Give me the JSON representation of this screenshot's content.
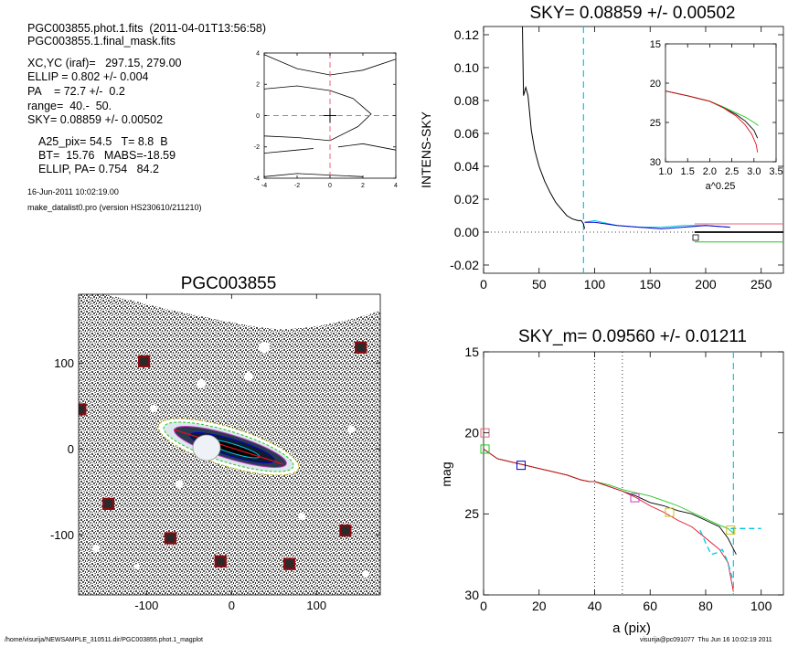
{
  "header": {
    "lines1": [
      "PGC003855.phot.1.fits  (2011-04-01T13:56:58)",
      "PGC003855.1.final_mask.fits"
    ],
    "lines2": [
      "XC,YC (iraf)=   297.15, 279.00",
      "ELLIP = 0.802 +/- 0.004",
      "PA    = 72.7 +/-  0.2",
      "range=  40.-  50.",
      "SKY= 0.08859 +/- 0.00502"
    ],
    "lines3": [
      "A25_pix= 54.5   T= 8.8  B",
      "BT=  15.76   MABS=-18.59",
      "ELLIP, PA= 0.754   84.2"
    ],
    "date": "16-Jun-2011 10:02:19.00",
    "program": "make_datalist0.pro (version HS230610/211210)"
  },
  "footer": {
    "path": "/home/visurija/NEWSAMPLE_310511.dir/PGC003855.phot.1_magplot",
    "user": "visurija@pc091077  Thu Jun 16 10:02:19 2011"
  },
  "chart_data": [
    {
      "type": "contour",
      "xlim": [
        -4,
        4
      ],
      "ylim": [
        -4,
        4
      ],
      "x_ticks": [
        "-4",
        "-2",
        "0",
        "2",
        "4"
      ],
      "y_ticks": [
        "-4",
        "-2",
        "0",
        "2",
        "4"
      ],
      "center_marker": [
        0,
        0
      ],
      "contours": [
        [
          [
            -4,
            3.9
          ],
          [
            -2,
            3.0
          ],
          [
            0,
            2.6
          ],
          [
            2,
            2.9
          ],
          [
            4,
            3.6
          ]
        ],
        [
          [
            -4,
            1.7
          ],
          [
            -2,
            1.9
          ],
          [
            0,
            1.6
          ],
          [
            1.4,
            1.1
          ],
          [
            2.5,
            0.1
          ],
          [
            1.7,
            -0.7
          ],
          [
            0,
            -1.6
          ],
          [
            -2,
            -1.4
          ],
          [
            -4,
            -1.3
          ]
        ],
        [
          [
            -4,
            -2.4
          ],
          [
            -2,
            -2.2
          ],
          [
            -1,
            -2.1
          ]
        ],
        [
          [
            0.5,
            -2.0
          ],
          [
            2,
            -1.8
          ],
          [
            4,
            -2.2
          ]
        ],
        [
          [
            -4,
            -3.9
          ],
          [
            -2,
            -3.7
          ],
          [
            0,
            -3.8
          ],
          [
            2,
            -3.9
          ]
        ]
      ]
    },
    {
      "type": "image",
      "title": "PGC003855",
      "xlim": [
        -180,
        175
      ],
      "ylim": [
        -170,
        180
      ],
      "x_ticks": [
        "-100",
        "0",
        "100"
      ],
      "y_ticks": [
        "100",
        "0",
        "-100"
      ],
      "masked_sources": [
        [
          -103,
          102
        ],
        [
          -178,
          46
        ],
        [
          -145,
          -64
        ],
        [
          -72,
          -104
        ],
        [
          -13,
          -131
        ],
        [
          68,
          -134
        ],
        [
          134,
          -95
        ],
        [
          152,
          118
        ]
      ]
    },
    {
      "type": "line",
      "title": "SKY= 0.08859 +/- 0.00502",
      "ylabel": "INTENS-SKY",
      "xlim": [
        0,
        270
      ],
      "ylim": [
        -0.025,
        0.125
      ],
      "x_ticks": [
        "0",
        "50",
        "100",
        "150",
        "200",
        "250"
      ],
      "y_ticks": [
        "0.12",
        "0.10",
        "0.08",
        "0.06",
        "0.04",
        "0.02",
        "0.00",
        "-0.02"
      ],
      "vline": 90,
      "series": [
        {
          "color": "#000000",
          "x": [
            35,
            36,
            38,
            40,
            43,
            46,
            50,
            55,
            60,
            65,
            70,
            75,
            80,
            85,
            88,
            90,
            91
          ],
          "y": [
            0.125,
            0.083,
            0.088,
            0.083,
            0.062,
            0.05,
            0.04,
            0.031,
            0.024,
            0.018,
            0.014,
            0.01,
            0.008,
            0.007,
            0.007,
            0.005,
            0.002
          ]
        },
        {
          "color": "#00c8e8",
          "x": [
            91,
            100,
            120,
            140,
            160,
            180,
            200,
            222
          ],
          "y": [
            0.006,
            0.007,
            0.004,
            0.003,
            0.003,
            0.004,
            0.004,
            0.003
          ]
        },
        {
          "color": "#0000cc",
          "x": [
            91,
            100,
            120,
            140,
            160,
            180,
            200,
            222
          ],
          "y": [
            0.006,
            0.006,
            0.004,
            0.003,
            0.002,
            0.003,
            0.004,
            0.003
          ]
        },
        {
          "color": "#e8607a",
          "x": [
            190,
            270
          ],
          "y": [
            0.005,
            0.005
          ]
        },
        {
          "color": "#000000",
          "x": [
            190,
            270
          ],
          "y": [
            0.0,
            0.0
          ]
        },
        {
          "color": "#20c820",
          "x": [
            190,
            270
          ],
          "y": [
            -0.006,
            -0.006
          ]
        }
      ],
      "inset": {
        "xlabel": "a^0.25",
        "xlim": [
          1.0,
          3.5
        ],
        "ylim": [
          15,
          30
        ],
        "x_ticks": [
          "1.0",
          "1.5",
          "2.0",
          "2.5",
          "3.0",
          "3.5"
        ],
        "y_ticks": [
          "15",
          "20",
          "25",
          "30"
        ],
        "series": [
          {
            "color": "#20c820",
            "x": [
              1.0,
              1.5,
              2.0,
              2.3,
              2.6,
              2.8,
              3.0,
              3.1
            ],
            "y": [
              21.0,
              21.6,
              22.3,
              23.0,
              23.8,
              24.3,
              25.0,
              25.4
            ]
          },
          {
            "color": "#000000",
            "x": [
              1.0,
              1.5,
              2.0,
              2.3,
              2.6,
              2.8,
              3.0,
              3.08
            ],
            "y": [
              21.0,
              21.6,
              22.3,
              23.1,
              24.0,
              24.8,
              26.0,
              27.0
            ]
          },
          {
            "color": "#e01020",
            "x": [
              1.0,
              1.5,
              2.0,
              2.3,
              2.6,
              2.8,
              2.95,
              3.05,
              3.08
            ],
            "y": [
              21.0,
              21.6,
              22.3,
              23.1,
              24.2,
              25.3,
              26.5,
              27.8,
              28.8
            ]
          }
        ]
      }
    },
    {
      "type": "line",
      "title": "SKY_m=  0.09560 +/- 0.01211",
      "xlabel": "a (pix)",
      "ylabel": "mag",
      "xlim": [
        0,
        108
      ],
      "ylim": [
        15,
        30
      ],
      "y_reversed": true,
      "x_ticks": [
        "0",
        "20",
        "40",
        "60",
        "80",
        "100"
      ],
      "y_ticks": [
        "15",
        "20",
        "25",
        "30"
      ],
      "vlines_dotted": [
        40,
        50
      ],
      "vline_dashed": 90,
      "series": [
        {
          "color": "#20c820",
          "x": [
            0,
            5,
            10,
            15,
            20,
            25,
            30,
            35,
            38,
            40,
            45,
            50,
            55,
            60,
            65,
            70,
            75,
            80,
            85,
            88,
            90
          ],
          "y": [
            21.0,
            21.6,
            21.8,
            22.0,
            22.2,
            22.4,
            22.6,
            22.9,
            23.0,
            23.0,
            23.2,
            23.5,
            23.7,
            23.9,
            24.2,
            24.5,
            24.9,
            25.3,
            25.7,
            25.9,
            26.2
          ]
        },
        {
          "color": "#000000",
          "x": [
            0,
            5,
            10,
            15,
            20,
            25,
            30,
            35,
            38,
            40,
            45,
            50,
            55,
            60,
            65,
            70,
            75,
            80,
            85,
            88,
            91
          ],
          "y": [
            21.0,
            21.6,
            21.8,
            22.0,
            22.2,
            22.4,
            22.6,
            22.9,
            23.0,
            23.0,
            23.3,
            23.6,
            23.9,
            24.3,
            24.5,
            24.8,
            25.0,
            25.4,
            25.8,
            26.5,
            27.5
          ]
        },
        {
          "color": "#e01020",
          "x": [
            0,
            5,
            10,
            15,
            20,
            25,
            30,
            35,
            38,
            40,
            45,
            50,
            55,
            60,
            65,
            70,
            75,
            80,
            85,
            88,
            90
          ],
          "y": [
            21.0,
            21.6,
            21.8,
            22.0,
            22.2,
            22.4,
            22.6,
            22.9,
            23.0,
            23.0,
            23.3,
            23.6,
            24.0,
            24.5,
            24.9,
            25.4,
            25.8,
            26.5,
            27.2,
            28.0,
            29.8
          ]
        },
        {
          "color": "#00c8e8",
          "x": [
            78,
            80,
            82,
            84,
            86,
            88,
            90
          ],
          "y": [
            26.0,
            26.8,
            27.5,
            27.4,
            27.2,
            28.0,
            29.2
          ],
          "dashed": true
        },
        {
          "color": "#00c8e8",
          "x": [
            89,
            100
          ],
          "y": [
            25.9,
            25.9
          ],
          "dashed": true
        }
      ],
      "markers": [
        {
          "color": "#e8607a",
          "x": 0.5,
          "y": 20.0
        },
        {
          "color": "#20c820",
          "x": 0.5,
          "y": 21.0
        },
        {
          "color": "#0000cc",
          "x": 13.5,
          "y": 22.0
        },
        {
          "color": "#c040c0",
          "x": 54.5,
          "y": 24.0
        },
        {
          "color": "#c8c030",
          "x": 67,
          "y": 24.9
        },
        {
          "color": "#c8c030",
          "x": 89,
          "y": 26.0
        }
      ]
    }
  ]
}
